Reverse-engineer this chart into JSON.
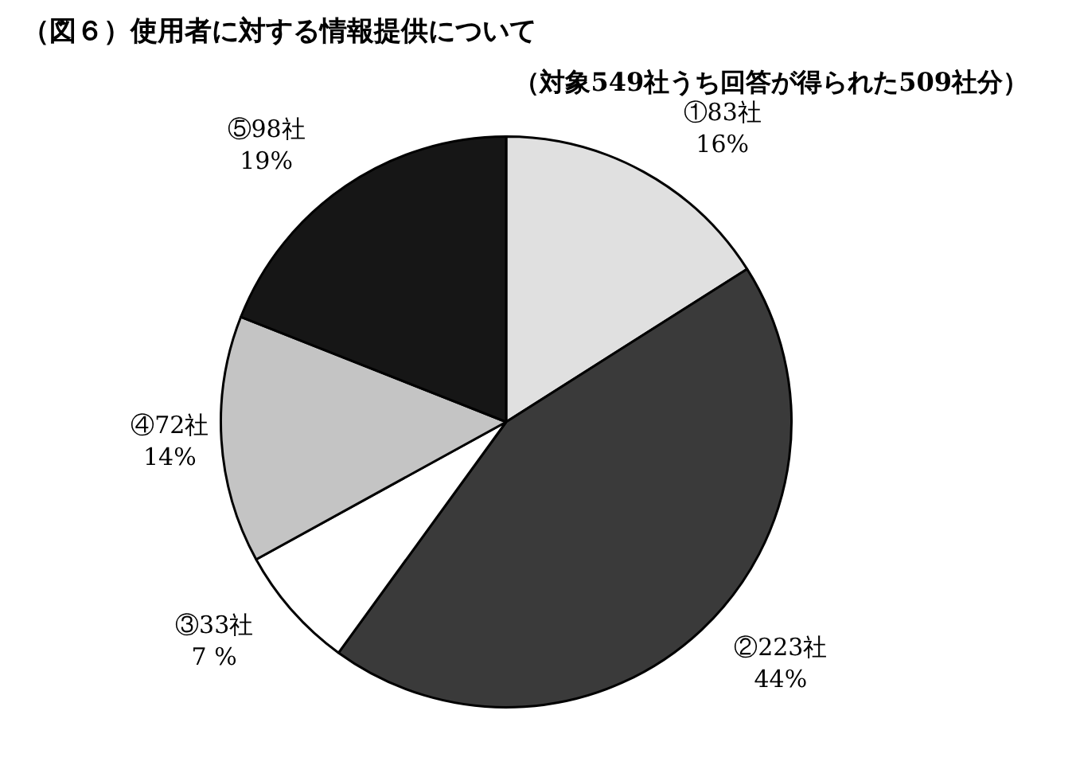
{
  "chart_data": {
    "type": "pie",
    "title": "（図６）使用者に対する情報提供について",
    "subtitle": "（対象549社うち回答が得られた509社分）",
    "categories": [
      "①83社",
      "②223社",
      "③33社",
      "④72社",
      "⑤98社"
    ],
    "values": [
      16,
      44,
      7,
      14,
      19
    ],
    "value_labels": [
      "16%",
      "44%",
      "7 %",
      "14%",
      "19%"
    ],
    "colors": [
      "#e0e0e0",
      "#3a3a3a",
      "#ffffff",
      "#c4c4c4",
      "#161616"
    ],
    "legend": false
  }
}
